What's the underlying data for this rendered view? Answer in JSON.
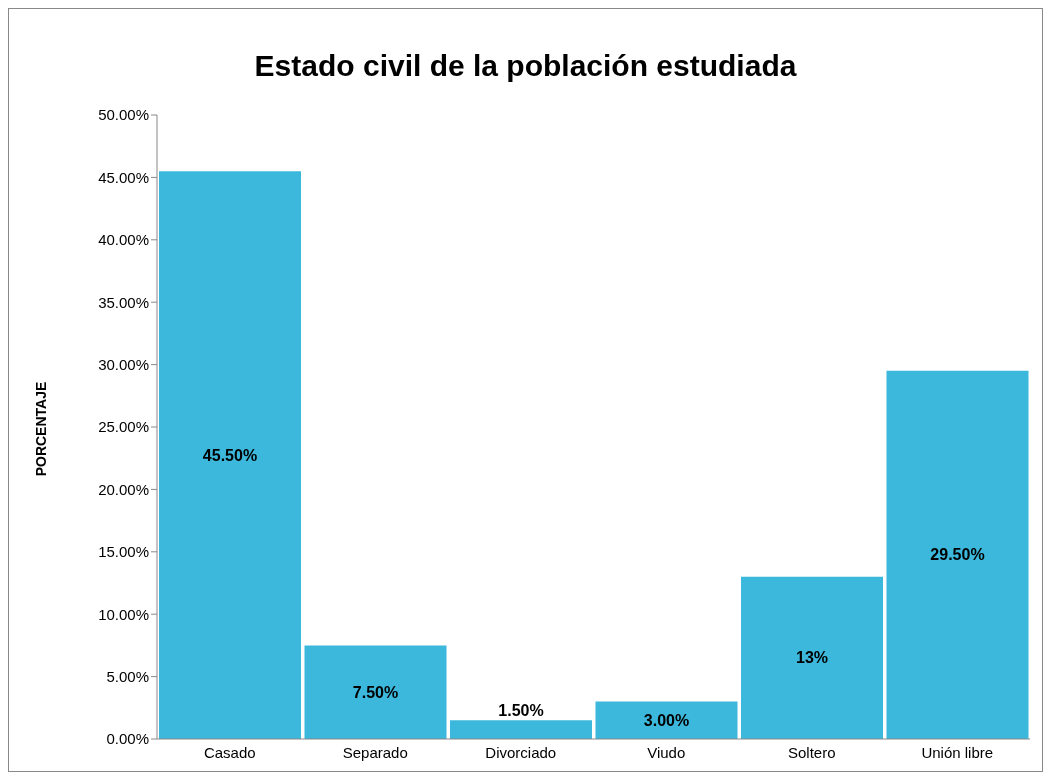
{
  "chart_data": {
    "type": "bar",
    "title": "Estado civil de la población estudiada",
    "ylabel": "PORCENTAJE",
    "categories": [
      "Casado",
      "Separado",
      "Divorciado",
      "Viudo",
      "Soltero",
      "Unión libre"
    ],
    "values": [
      45.5,
      7.5,
      1.5,
      3.0,
      13,
      29.5
    ],
    "value_labels": [
      "45.50%",
      "7.50%",
      "1.50%",
      "3.00%",
      "13%",
      "29.50%"
    ],
    "color": "#3bb8dc",
    "ylim": [
      0,
      50
    ],
    "yticks": [
      {
        "value": 0,
        "label": "0.00%"
      },
      {
        "value": 5,
        "label": "5.00%"
      },
      {
        "value": 10,
        "label": "10.00%"
      },
      {
        "value": 15,
        "label": "15.00%"
      },
      {
        "value": 20,
        "label": "20.00%"
      },
      {
        "value": 25,
        "label": "25.00%"
      },
      {
        "value": 30,
        "label": "30.00%"
      },
      {
        "value": 35,
        "label": "35.00%"
      },
      {
        "value": 40,
        "label": "40.00%"
      },
      {
        "value": 45,
        "label": "45.00%"
      },
      {
        "value": 50,
        "label": "50.00%"
      }
    ],
    "grid": false,
    "legend": false
  }
}
